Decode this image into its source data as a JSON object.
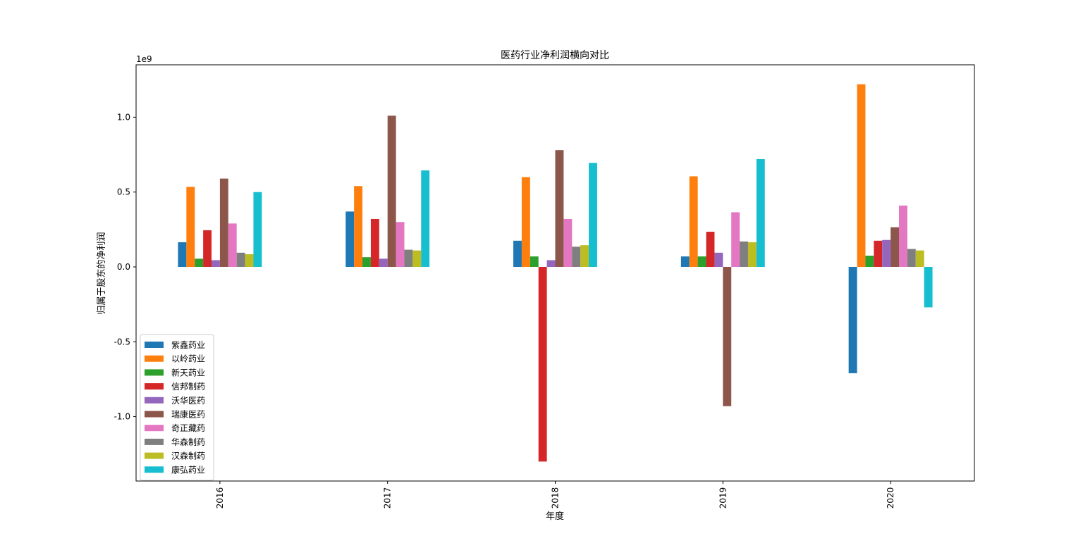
{
  "chart_data": {
    "type": "bar",
    "title": "医药行业净利润横向对比",
    "xlabel": "年度",
    "ylabel": "归属于股东的净利润",
    "y_offset_label": "1e9",
    "categories": [
      "2016",
      "2017",
      "2018",
      "2019",
      "2020"
    ],
    "ylim": [
      -1.43,
      1.35
    ],
    "yticks": [
      -1.0,
      -0.5,
      0.0,
      0.5,
      1.0
    ],
    "ytick_labels": [
      "-1.0",
      "-0.5",
      "0.0",
      "0.5",
      "1.0"
    ],
    "grid": false,
    "legend_position": "lower-left",
    "series": [
      {
        "name": "紫鑫药业",
        "color": "#1f77b4",
        "values": [
          0.165,
          0.37,
          0.175,
          0.07,
          -0.71
        ]
      },
      {
        "name": "以岭药业",
        "color": "#ff7f0e",
        "values": [
          0.535,
          0.54,
          0.6,
          0.605,
          1.22
        ]
      },
      {
        "name": "新天药业",
        "color": "#2ca02c",
        "values": [
          0.055,
          0.065,
          0.07,
          0.07,
          0.075
        ]
      },
      {
        "name": "信邦制药",
        "color": "#d62728",
        "values": [
          0.245,
          0.32,
          -1.3,
          0.235,
          0.175
        ]
      },
      {
        "name": "沃华医药",
        "color": "#9467bd",
        "values": [
          0.045,
          0.055,
          0.045,
          0.095,
          0.18
        ]
      },
      {
        "name": "瑞康医药",
        "color": "#8c564b",
        "values": [
          0.59,
          1.01,
          0.78,
          -0.93,
          0.265
        ]
      },
      {
        "name": "奇正藏药",
        "color": "#e377c2",
        "values": [
          0.29,
          0.3,
          0.32,
          0.365,
          0.41
        ]
      },
      {
        "name": "华森制药",
        "color": "#7f7f7f",
        "values": [
          0.095,
          0.115,
          0.135,
          0.17,
          0.12
        ]
      },
      {
        "name": "汉森制药",
        "color": "#bcbd22",
        "values": [
          0.085,
          0.11,
          0.145,
          0.165,
          0.11
        ]
      },
      {
        "name": "康弘药业",
        "color": "#17becf",
        "values": [
          0.5,
          0.645,
          0.695,
          0.72,
          -0.27
        ]
      }
    ]
  }
}
